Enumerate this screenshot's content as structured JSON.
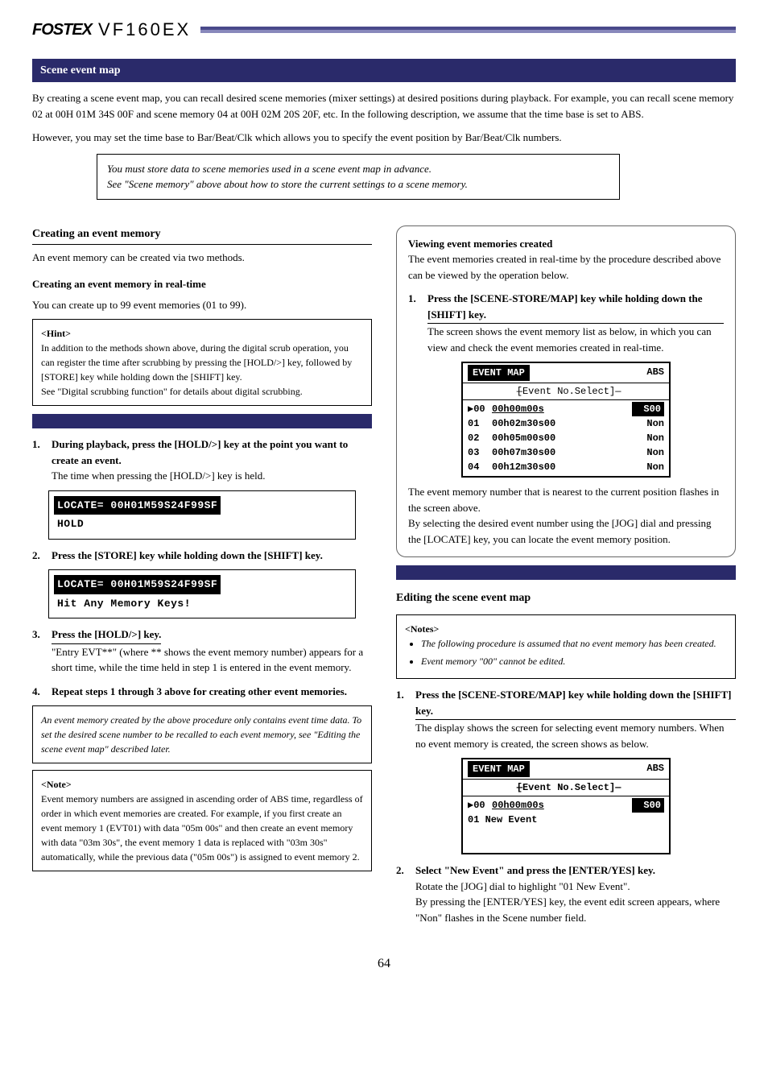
{
  "header": {
    "brand": "FOSTEX",
    "model": "VF160EX"
  },
  "main_title": "Scene event map",
  "intro": {
    "para1": "By creating a scene event map, you can recall desired scene memories (mixer settings) at desired positions during playback.  For example, you can recall scene memory 02 at 00H 01M 34S 00F and scene memory 04 at 00H 02M 20S 20F, etc.  In the following description, we assume that the time base is set to ABS.",
    "para2": "However, you may set the time base to Bar/Beat/Clk which allows you to specify the event position by Bar/Beat/Clk numbers."
  },
  "note_box": {
    "line1": "You must store data to scene memories used in a scene event map in advance.",
    "line2": "See \"Scene memory\" above about how to store the current settings to a scene memory."
  },
  "left_col": {
    "title1": "Creating an event memory",
    "intro": "An event memory can be created via two methods.",
    "subtitle1": "Creating an event memory in real-time",
    "subintro1": "You can create up to 99 event memories (01 to 99).",
    "tip_box": {
      "label": "<Hint>",
      "text": "In addition to the methods shown above, during the digital scrub operation, you can register the time after scrubbing by pressing the [HOLD/>] key, followed by [STORE] key while holding down the [SHIFT] key.",
      "see": "See \"Digital scrubbing function\" for details about digital scrubbing."
    },
    "step1_num": "1.",
    "step1": "During playback, press the [HOLD/>] key at the point you want to create an event.",
    "step1_note": "The time when pressing the [HOLD/>] key is held.",
    "lcd1_line1": "LOCATE= 00H01M59S24F99SF",
    "lcd1_line2": "HOLD",
    "step2_num": "2.",
    "step2": "Press the [STORE] key while holding down the [SHIFT] key.",
    "lcd2_line1": "LOCATE= 00H01M59S24F99SF",
    "lcd2_line2": "Hit Any Memory Keys!",
    "step3_num": "3.",
    "step3": "Press the [HOLD/>] key.",
    "step3_note": "\"Entry EVT**\" (where ** shows the event memory number) appears for a short time, while the time held in step 1 is entered in the event memory.",
    "step4_num": "4.",
    "step4": "Repeat steps 1 through 3 above for creating other event memories.",
    "italic_note": "An event memory created by the above procedure only contains event time data.  To set the desired scene number to be recalled to each event memory, see \"Editing the scene event map\" described later.",
    "note2_label": "<Note>",
    "note2_text": "Event memory numbers are assigned in ascending order of ABS time, regardless of order in which event memories are created.  For example, if you first create an event memory 1 (EVT01) with data \"05m 00s\" and then create an event memory with data \"03m 30s\", the event memory 1 data is replaced with \"03m 30s\" automatically, while the previous data (\"05m 00s\") is assigned to event memory 2."
  },
  "right_col": {
    "box1_title": "Viewing event memories created",
    "box1_intro": "The event memories created in real-time by the procedure described above can be viewed by the operation below.",
    "box1_step_num": "1.",
    "box1_step": "Press the [SCENE-STORE/MAP] key while holding down the [SHIFT] key.",
    "box1_step_note": "The screen shows the event memory list as below, in which you can view and check the event memories created in real-time.",
    "event_map": {
      "title": "EVENT MAP",
      "abs": "ABS",
      "subheader": "[Event No.Select]",
      "rows": [
        {
          "num": "▶00",
          "time": "00h00m00s",
          "tag": "S00"
        },
        {
          "num": "01",
          "time": "00h02m30s00",
          "tag": "Non"
        },
        {
          "num": "02",
          "time": "00h05m00s00",
          "tag": "Non"
        },
        {
          "num": "03",
          "time": "00h07m30s00",
          "tag": "Non"
        },
        {
          "num": "04",
          "time": "00h12m30s00",
          "tag": "Non"
        }
      ]
    },
    "box1_footer1": "The event memory number that is nearest to the current position flashes in the screen above.",
    "box1_footer2": "By selecting the desired event number using the [JOG] dial and pressing the [LOCATE] key, you can locate the event memory position.",
    "edit_title": "Editing the scene event map",
    "notes_label": "<Notes>",
    "bullet1": "The following procedure is assumed that no event memory has been created.",
    "bullet2": "Event memory \"00\" cannot be edited.",
    "edit_step1_num": "1.",
    "edit_step1": "Press the [SCENE-STORE/MAP] key while holding down the [SHIFT] key.",
    "edit_step1_note": "The display shows the screen for selecting event memory numbers.  When no event memory is created, the screen shows as below.",
    "event_map2": {
      "title": "EVENT MAP",
      "abs": "ABS",
      "subheader": "[Event No.Select]",
      "row1_num": "▶00",
      "row1_time": "00h00m00s",
      "row1_tag": "S00",
      "row2": "01  New Event"
    },
    "edit_step2_num": "2.",
    "edit_step2": "Select \"New Event\" and press the [ENTER/YES] key.",
    "edit_step2_note1": "Rotate the [JOG] dial to highlight \"01 New Event\".",
    "edit_step2_note2": "By pressing the [ENTER/YES] key, the event edit screen appears, where \"Non\" flashes in the Scene number field."
  },
  "page_number": "64"
}
